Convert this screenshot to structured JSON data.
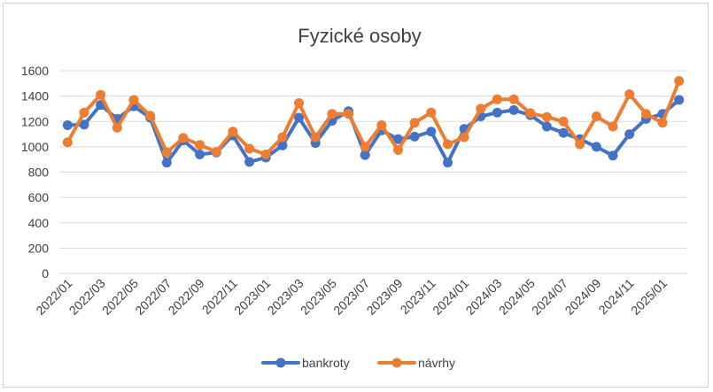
{
  "chart_data": {
    "type": "line",
    "title": "Fyzické osoby",
    "ylim": [
      0,
      1600
    ],
    "yticks": [
      0,
      200,
      400,
      600,
      800,
      1000,
      1200,
      1400,
      1600
    ],
    "grid": true,
    "legend_position": "bottom",
    "x": [
      "2022/01",
      "2022/02",
      "2022/03",
      "2022/04",
      "2022/05",
      "2022/06",
      "2022/07",
      "2022/08",
      "2022/09",
      "2022/10",
      "2022/11",
      "2022/12",
      "2023/01",
      "2023/02",
      "2023/03",
      "2023/04",
      "2023/05",
      "2023/06",
      "2023/07",
      "2023/08",
      "2023/09",
      "2023/10",
      "2023/11",
      "2023/12",
      "2024/01",
      "2024/02",
      "2024/03",
      "2024/04",
      "2024/05",
      "2024/06",
      "2024/07",
      "2024/08",
      "2024/09",
      "2024/10",
      "2024/11",
      "2024/12",
      "2025/01",
      "2025/02"
    ],
    "x_tick_labels": [
      "2022/01",
      "2022/03",
      "2022/05",
      "2022/07",
      "2022/09",
      "2022/11",
      "2023/01",
      "2023/03",
      "2023/05",
      "2023/07",
      "2023/09",
      "2023/11",
      "2024/01",
      "2024/03",
      "2024/05",
      "2024/07",
      "2024/09",
      "2024/11",
      "2025/01"
    ],
    "series": [
      {
        "name": "bankroty",
        "color": "#4472C4",
        "values": [
          1170,
          1175,
          1330,
          1220,
          1320,
          1230,
          875,
          1050,
          940,
          955,
          1090,
          880,
          915,
          1010,
          1230,
          1030,
          1205,
          1280,
          935,
          1130,
          1060,
          1080,
          1120,
          875,
          1140,
          1240,
          1270,
          1290,
          1250,
          1160,
          1110,
          1060,
          1000,
          930,
          1100,
          1220,
          1260,
          1370
        ]
      },
      {
        "name": "návrhy",
        "color": "#ED7D31",
        "values": [
          1035,
          1270,
          1410,
          1150,
          1370,
          1245,
          955,
          1070,
          1015,
          960,
          1120,
          985,
          940,
          1075,
          1345,
          1075,
          1260,
          1260,
          1000,
          1170,
          975,
          1190,
          1270,
          1020,
          1075,
          1300,
          1375,
          1375,
          1265,
          1235,
          1200,
          1020,
          1240,
          1160,
          1415,
          1260,
          1190,
          1520
        ]
      }
    ]
  }
}
